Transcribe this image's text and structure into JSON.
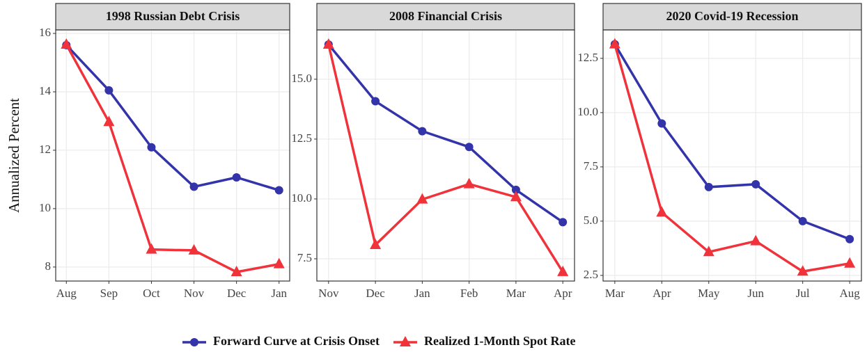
{
  "chart_data": [
    {
      "type": "line",
      "title": "1998 Russian Debt Crisis",
      "ylabel": "Annualized Percent",
      "categories": [
        "Aug",
        "Sep",
        "Oct",
        "Nov",
        "Dec",
        "Jan"
      ],
      "ylim": [
        7.52,
        16.12
      ],
      "yticks": [
        8,
        10,
        12,
        14,
        16
      ],
      "grid": true,
      "series": [
        {
          "name": "Forward Curve at Crisis Onset",
          "color": "#3333aa",
          "marker": "circle",
          "values": [
            15.6,
            14.05,
            12.1,
            10.75,
            11.07,
            10.63
          ]
        },
        {
          "name": "Realized 1-Month Spot Rate",
          "color": "#f0323a",
          "marker": "triangle",
          "values": [
            15.62,
            12.97,
            8.6,
            8.57,
            7.83,
            8.1
          ]
        }
      ]
    },
    {
      "type": "line",
      "title": "2008 Financial Crisis",
      "categories": [
        "Nov",
        "Dec",
        "Jan",
        "Feb",
        "Mar",
        "Apr"
      ],
      "ylim": [
        6.57,
        17.06
      ],
      "yticks": [
        7.5,
        {
          "value": 10,
          "label": "10.0"
        },
        12.5,
        {
          "value": 15,
          "label": "15.0"
        }
      ],
      "grid": true,
      "series": [
        {
          "color": "#3333aa",
          "marker": "circle",
          "values": [
            16.45,
            14.08,
            12.83,
            12.17,
            10.38,
            9.03
          ]
        },
        {
          "color": "#f0323a",
          "marker": "triangle",
          "values": [
            16.45,
            8.08,
            9.98,
            10.62,
            10.08,
            6.95
          ]
        }
      ]
    },
    {
      "type": "line",
      "title": "2020 Covid-19 Recession",
      "categories": [
        "Mar",
        "Apr",
        "May",
        "Jun",
        "Jul",
        "Aug"
      ],
      "ylim": [
        2.24,
        13.81
      ],
      "yticks": [
        2.5,
        {
          "value": 5,
          "label": "5.0"
        },
        7.5,
        {
          "value": 10,
          "label": "10.0"
        },
        12.5
      ],
      "grid": true,
      "series": [
        {
          "color": "#3333aa",
          "marker": "circle",
          "values": [
            13.15,
            9.5,
            6.57,
            6.7,
            5.0,
            4.17
          ]
        },
        {
          "color": "#f0323a",
          "marker": "triangle",
          "values": [
            13.15,
            5.4,
            3.58,
            4.08,
            2.68,
            3.05
          ]
        }
      ]
    }
  ]
}
